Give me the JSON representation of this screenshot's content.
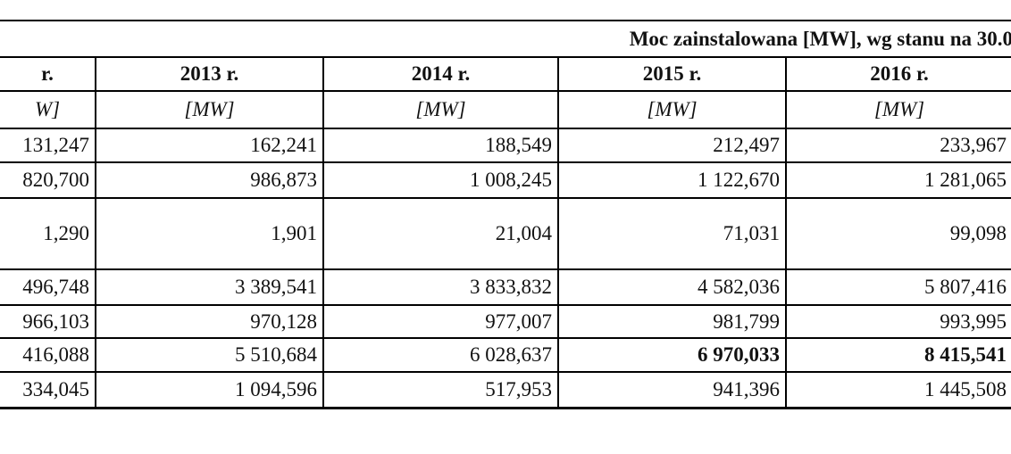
{
  "header": {
    "title": "Moc zainstalowana [MW], wg stanu na 30.0"
  },
  "table": {
    "columns": [
      "r.",
      "2013 r.",
      "2014 r.",
      "2015 r.",
      "2016 r."
    ],
    "units": [
      "W]",
      "[MW]",
      "[MW]",
      "[MW]",
      "[MW]"
    ],
    "rows": [
      [
        "131,247",
        "162,241",
        "188,549",
        "212,497",
        "233,967"
      ],
      [
        "820,700",
        "986,873",
        "1 008,245",
        "1 122,670",
        "1 281,065"
      ],
      [
        "1,290",
        "1,901",
        "21,004",
        "71,031",
        "99,098"
      ],
      [
        "496,748",
        "3 389,541",
        "3 833,832",
        "4 582,036",
        "5 807,416"
      ],
      [
        "966,103",
        "970,128",
        "977,007",
        "981,799",
        "993,995"
      ],
      [
        "416,088",
        "5 510,684",
        "6 028,637",
        "6 970,033",
        "8 415,541"
      ],
      [
        "334,045",
        "1 094,596",
        "517,953",
        "941,396",
        "1 445,508"
      ]
    ]
  }
}
